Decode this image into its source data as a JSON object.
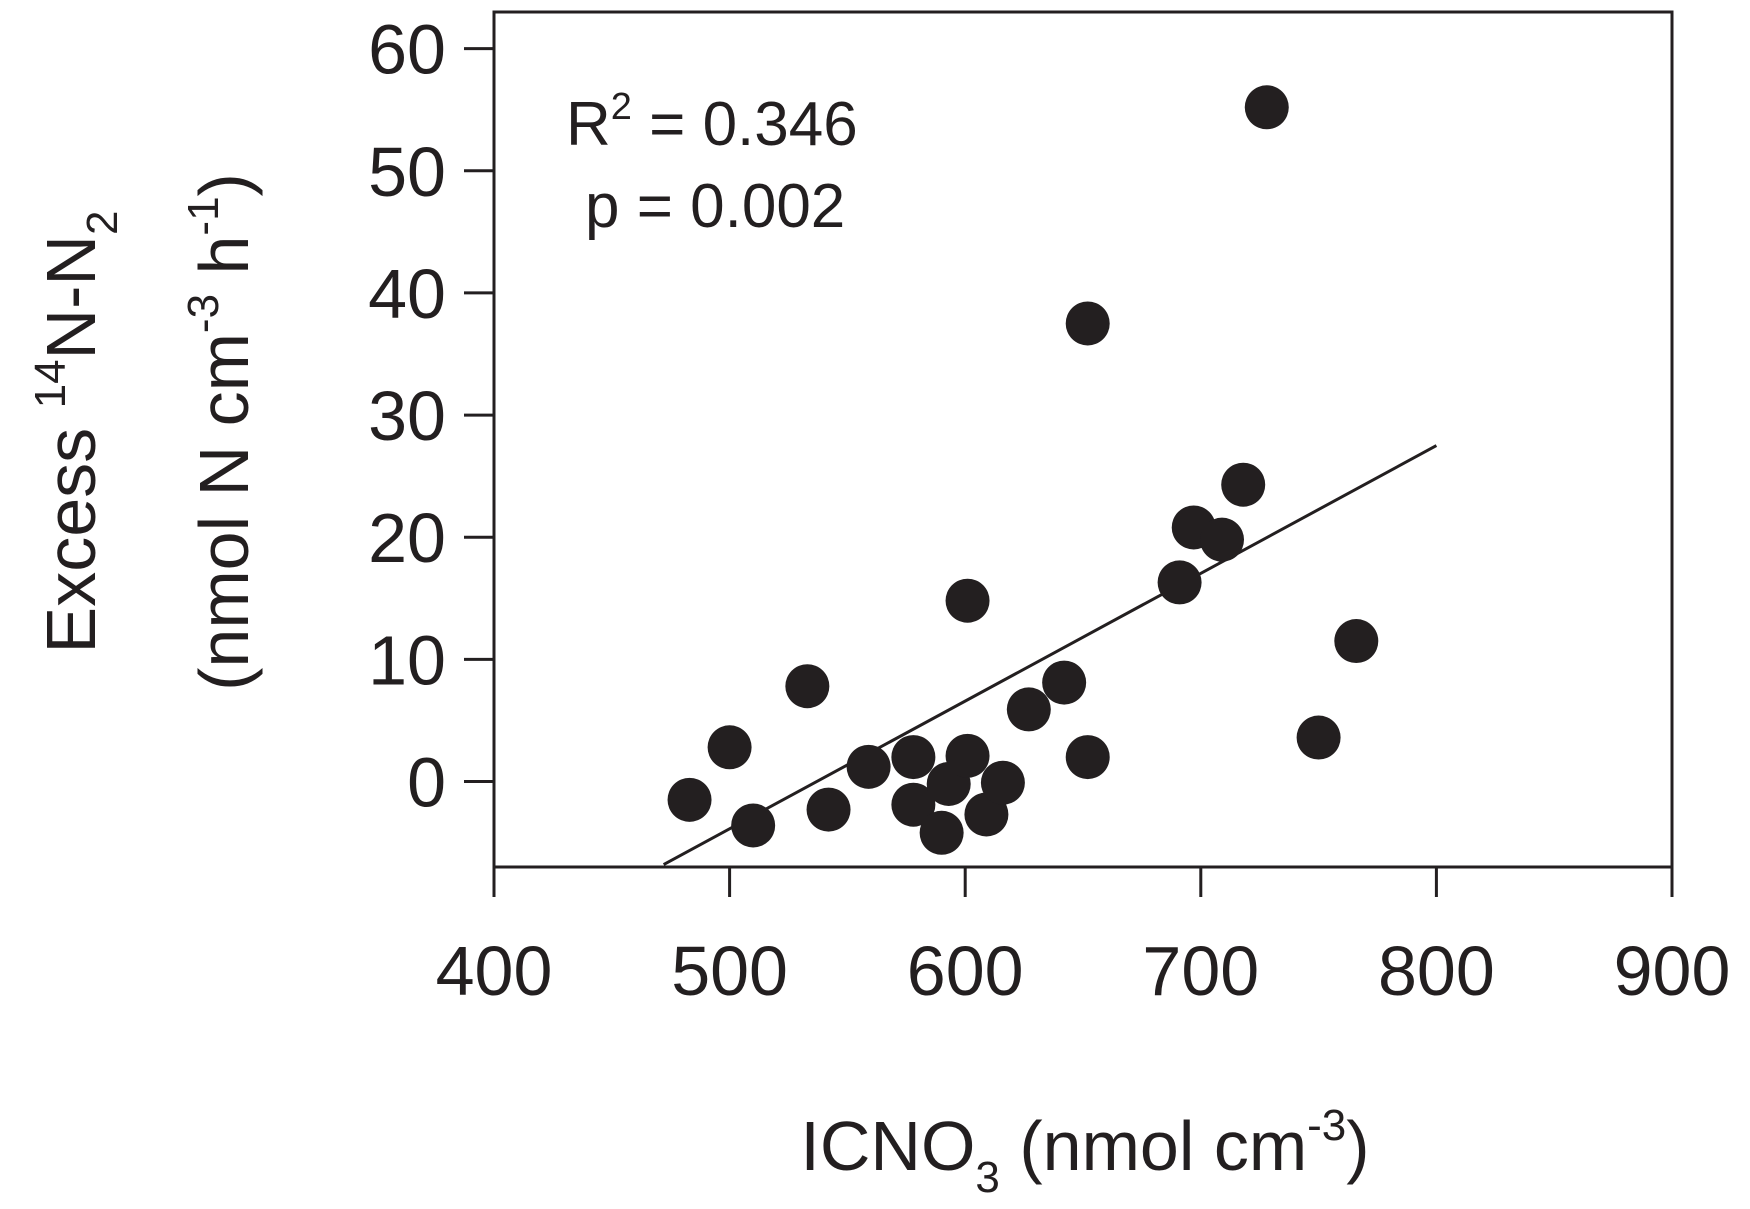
{
  "chart_data": {
    "type": "scatter",
    "title": "",
    "xlabel": {
      "main": "ICNO",
      "sub": "3",
      "units_open": " (nmol cm",
      "units_sup": "-3",
      "units_close": ")"
    },
    "ylabel": {
      "line1_prefix": "Excess ",
      "line1_sup": "14",
      "line1_mid": "N-N",
      "line1_sub": "2",
      "line2_open": "(nmol N cm",
      "line2_sup1": "-3",
      "line2_mid": " h",
      "line2_sup2": "-1",
      "line2_close": ")"
    },
    "xlim": [
      400,
      900
    ],
    "ylim": [
      -7,
      63
    ],
    "xticks": [
      400,
      500,
      600,
      700,
      800,
      900
    ],
    "yticks": [
      0,
      10,
      20,
      30,
      40,
      50,
      60
    ],
    "grid": false,
    "points": [
      {
        "x": 483,
        "y": -1.5
      },
      {
        "x": 500,
        "y": 2.8
      },
      {
        "x": 510,
        "y": -3.6
      },
      {
        "x": 533,
        "y": 7.8
      },
      {
        "x": 542,
        "y": -2.3
      },
      {
        "x": 559,
        "y": 1.2
      },
      {
        "x": 578,
        "y": 2.0
      },
      {
        "x": 578,
        "y": -1.9
      },
      {
        "x": 590,
        "y": -4.2
      },
      {
        "x": 593,
        "y": -0.2
      },
      {
        "x": 601,
        "y": 14.8
      },
      {
        "x": 601,
        "y": 2.1
      },
      {
        "x": 609,
        "y": -2.7
      },
      {
        "x": 616,
        "y": -0.1
      },
      {
        "x": 627,
        "y": 5.9
      },
      {
        "x": 642,
        "y": 8.1
      },
      {
        "x": 652,
        "y": 37.5
      },
      {
        "x": 652,
        "y": 2.0
      },
      {
        "x": 691,
        "y": 16.3
      },
      {
        "x": 697,
        "y": 20.8
      },
      {
        "x": 709,
        "y": 19.8
      },
      {
        "x": 718,
        "y": 24.3
      },
      {
        "x": 728,
        "y": 55.2
      },
      {
        "x": 750,
        "y": 3.6
      },
      {
        "x": 766,
        "y": 11.5
      }
    ],
    "fit_line": {
      "x": [
        472,
        800
      ],
      "y": [
        -6.8,
        27.5
      ]
    },
    "annotations": {
      "r2_prefix": "R",
      "r2_sup": "2",
      "r2_value": " = 0.346",
      "p_text": "p = 0.002"
    }
  }
}
